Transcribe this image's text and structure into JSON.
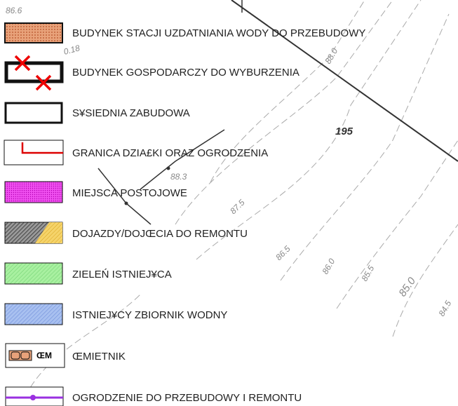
{
  "map_labels": [
    "86.6",
    "0.18",
    "88.0",
    "195",
    "88.3",
    "87.5",
    "86.5",
    "86.0",
    "85.5",
    "85.0",
    "84.5"
  ],
  "legend": [
    {
      "label": "BUDYNEK STACJI UZDATNIANIA WODY DO PRZEBUDOWY"
    },
    {
      "label": "BUDYNEK GOSPODARCZY DO WYBURZENIA"
    },
    {
      "label": "S¥SIEDNIA ZABUDOWA"
    },
    {
      "label": "GRANICA DZIA£KI ORAZ OGRODZENIA"
    },
    {
      "label": "MIEJSCA POSTOJOWE"
    },
    {
      "label": "DOJAZDY/DOJŒCIA DO REMONTU"
    },
    {
      "label": "ZIELEŃ ISTNIEJ¥CA"
    },
    {
      "label": "ISTNIEJ¥CY ZBIORNIK WODNY"
    },
    {
      "label": "ŒMIETNIK",
      "icon_text": "ŒM"
    },
    {
      "label": "OGRODZENIE DO PRZEBUDOWY I REMONTU"
    }
  ]
}
